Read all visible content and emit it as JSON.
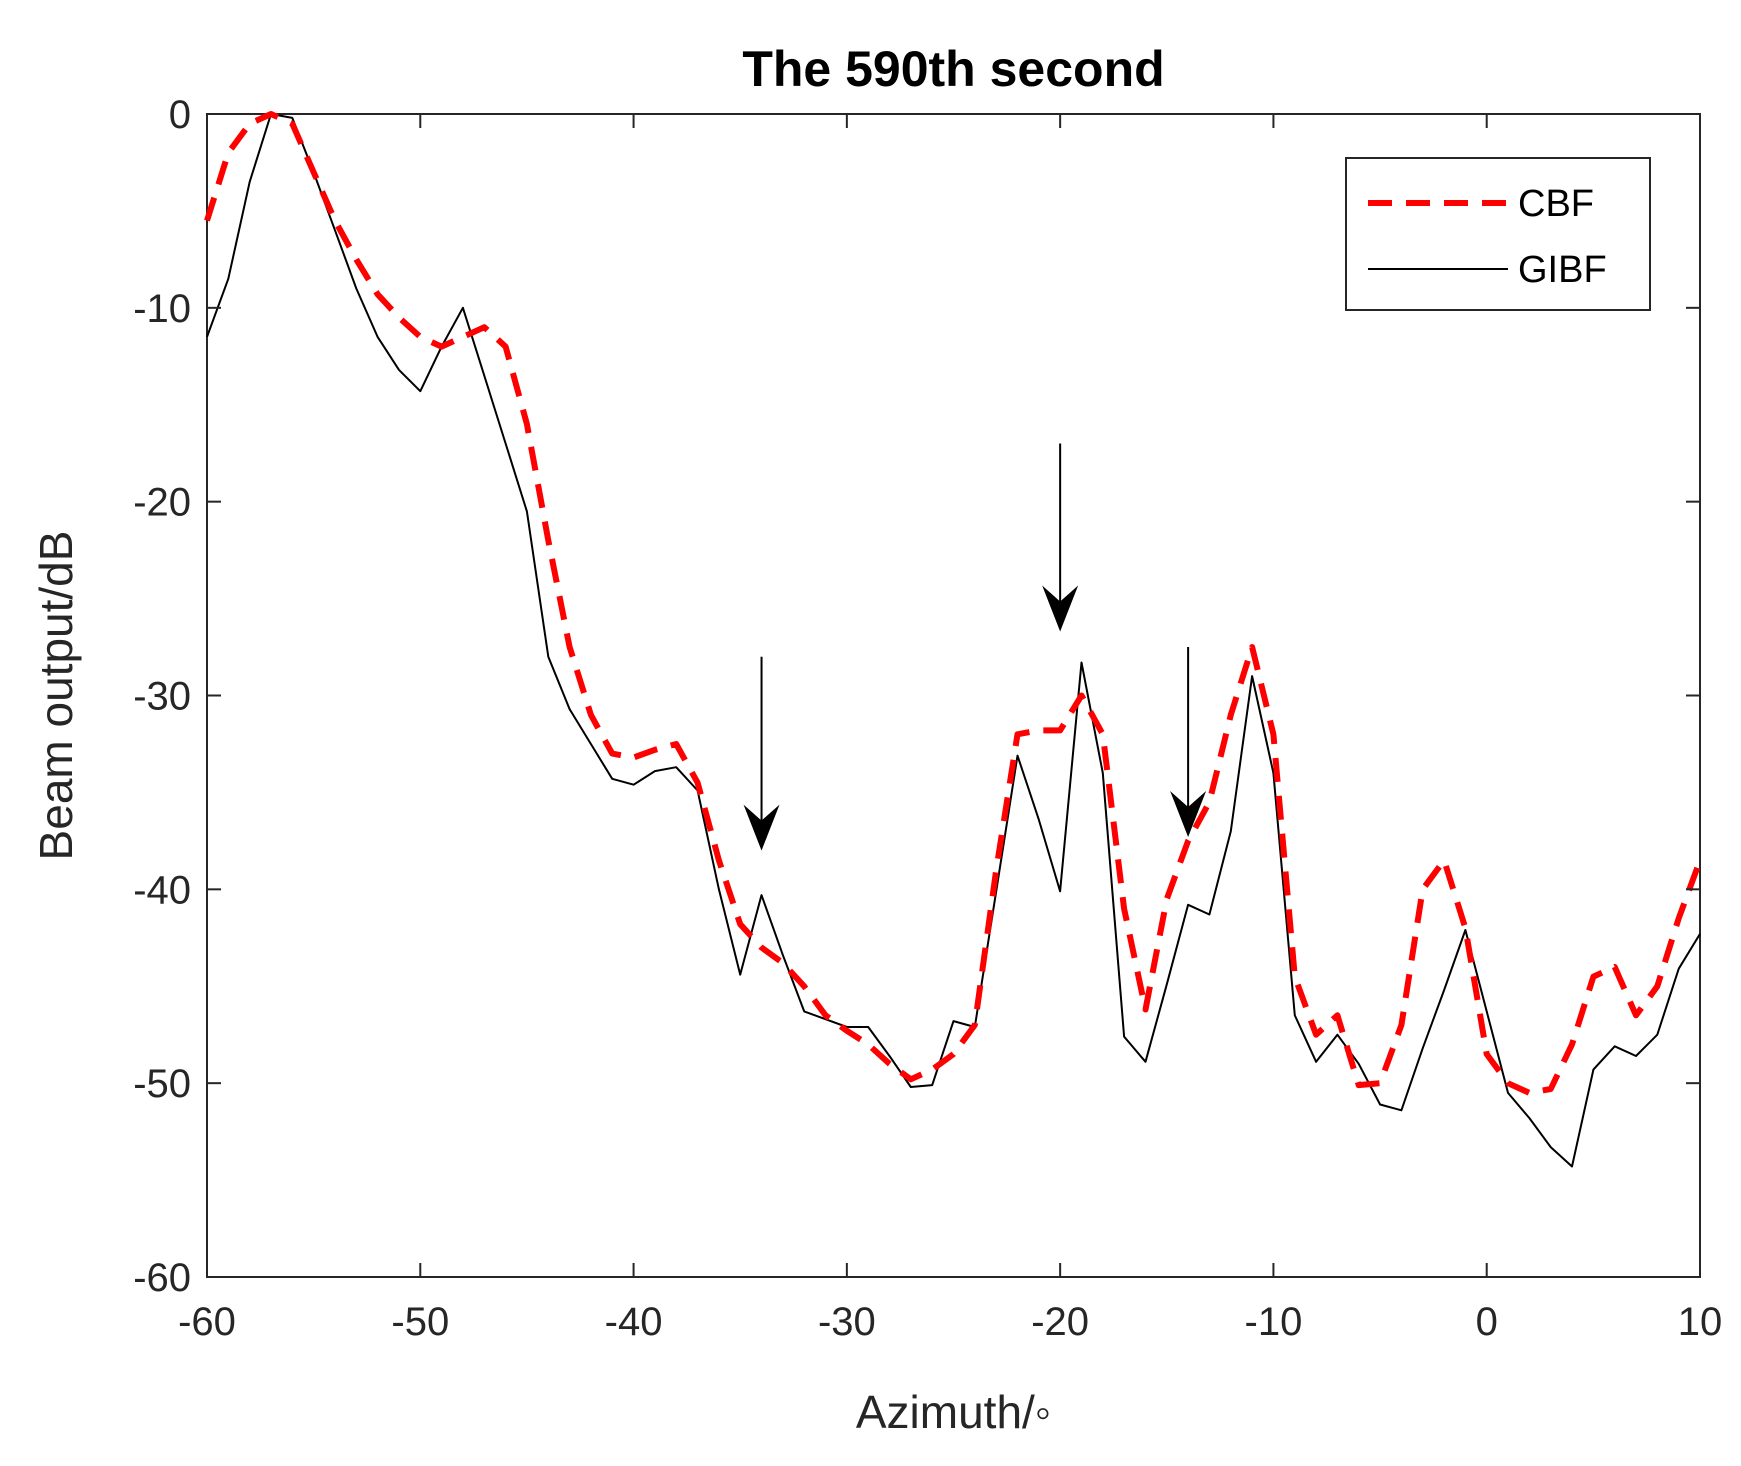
{
  "chart_data": {
    "type": "line",
    "title": "The 590th second",
    "xlabel": "Azimuth/◦",
    "ylabel": "Beam output/dB",
    "xlim": [
      -60,
      10
    ],
    "ylim": [
      -60,
      0
    ],
    "xticks": [
      -60,
      -50,
      -40,
      -30,
      -20,
      -10,
      0,
      10
    ],
    "yticks": [
      0,
      -10,
      -20,
      -30,
      -40,
      -50,
      -60
    ],
    "xtick_labels": [
      "-60",
      "-50",
      "-40",
      "-30",
      "-20",
      "-10",
      "0",
      "10"
    ],
    "ytick_labels": [
      "0",
      "-10",
      "-20",
      "-30",
      "-40",
      "-50",
      "-60"
    ],
    "grid": false,
    "legend_position": "top-right",
    "series": [
      {
        "name": "CBF",
        "color": "#ff0000",
        "style": "dashed",
        "x": [
          -60,
          -59,
          -58,
          -57,
          -56,
          -55,
          -54,
          -53,
          -52,
          -51,
          -50,
          -49,
          -48,
          -47,
          -46,
          -45,
          -44,
          -43,
          -42,
          -41,
          -40,
          -39,
          -38,
          -37,
          -36,
          -35,
          -34,
          -33,
          -32,
          -31,
          -30,
          -29,
          -28,
          -27,
          -26,
          -25,
          -24,
          -23,
          -22,
          -21,
          -20,
          -19,
          -18,
          -17,
          -16,
          -15,
          -14,
          -13,
          -12,
          -11,
          -10,
          -9,
          -8,
          -7,
          -6,
          -5,
          -4,
          -3,
          -2,
          -1,
          0,
          1,
          2,
          3,
          4,
          5,
          6,
          7,
          8,
          9,
          10
        ],
        "values": [
          -5.5,
          -2,
          -0.5,
          0,
          -0.5,
          -3,
          -5.5,
          -7.5,
          -9.3,
          -10.5,
          -11.5,
          -12,
          -11.5,
          -11,
          -12,
          -16,
          -22,
          -27.5,
          -31,
          -33,
          -33.2,
          -32.8,
          -32.5,
          -34.5,
          -38.5,
          -41.8,
          -43,
          -43.8,
          -45,
          -46.5,
          -47.3,
          -48,
          -49,
          -49.8,
          -49.3,
          -48.5,
          -47,
          -39,
          -32,
          -31.8,
          -31.8,
          -30,
          -32,
          -41,
          -46.2,
          -40.5,
          -37.5,
          -35.5,
          -31,
          -27.5,
          -32,
          -44.5,
          -47.5,
          -46.5,
          -50.1,
          -50,
          -47,
          -40,
          -38.5,
          -42,
          -48.5,
          -50,
          -50.5,
          -50.3,
          -48,
          -44.5,
          -44,
          -46.5,
          -45,
          -41.5,
          -38.5
        ]
      },
      {
        "name": "GIBF",
        "color": "#000000",
        "style": "solid",
        "x": [
          -60,
          -59,
          -58,
          -57,
          -56,
          -55,
          -54,
          -53,
          -52,
          -51,
          -50,
          -49,
          -48,
          -47,
          -46,
          -45,
          -44,
          -43,
          -42,
          -41,
          -40,
          -39,
          -38,
          -37,
          -36,
          -35,
          -34,
          -33,
          -32,
          -31,
          -30,
          -29,
          -28,
          -27,
          -26,
          -25,
          -24,
          -23,
          -22,
          -21,
          -20,
          -19,
          -18,
          -17,
          -16,
          -15,
          -14,
          -13,
          -12,
          -11,
          -10,
          -9,
          -8,
          -7,
          -6,
          -5,
          -4,
          -3,
          -2,
          -1,
          0,
          1,
          2,
          3,
          4,
          5,
          6,
          7,
          8,
          9,
          10
        ],
        "values": [
          -11.5,
          -8.5,
          -3.5,
          0,
          -0.2,
          -3,
          -6,
          -9,
          -11.5,
          -13.2,
          -14.3,
          -12,
          -10,
          -13.5,
          -17,
          -20.5,
          -28,
          -30.7,
          -32.5,
          -34.3,
          -34.6,
          -33.9,
          -33.7,
          -34.9,
          -40,
          -44.4,
          -40.3,
          -43.4,
          -46.3,
          -46.7,
          -47.1,
          -47.1,
          -48.6,
          -50.2,
          -50.1,
          -46.8,
          -47.1,
          -40.1,
          -33.1,
          -36.4,
          -40.1,
          -28.3,
          -34,
          -47.6,
          -48.9,
          -44.9,
          -40.8,
          -41.3,
          -37,
          -29,
          -34,
          -46.5,
          -48.9,
          -47.5,
          -49,
          -51.1,
          -51.4,
          -48.2,
          -45.2,
          -42.1,
          -46.3,
          -50.5,
          -51.8,
          -53.3,
          -54.3,
          -49.3,
          -48.1,
          -48.6,
          -47.5,
          -44.1,
          -42.3
        ]
      }
    ],
    "annotations": [
      {
        "type": "arrow",
        "direction": "down",
        "x": -34,
        "y_start": -28,
        "y_end": -38
      },
      {
        "type": "arrow",
        "direction": "down",
        "x": -20,
        "y_start": -17,
        "y_end": -26.7
      },
      {
        "type": "arrow",
        "direction": "down",
        "x": -14,
        "y_start": -27.5,
        "y_end": -37.3
      }
    ]
  }
}
